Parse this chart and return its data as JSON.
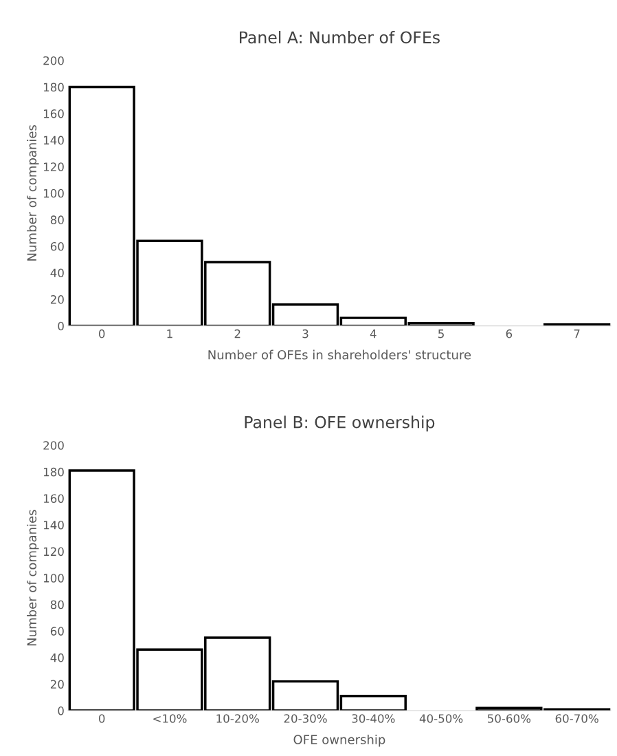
{
  "chart_data": [
    {
      "type": "bar",
      "title": "Panel A: Number of OFEs",
      "xlabel": "Number of OFEs in shareholders' structure",
      "ylabel": "Number of companies",
      "categories": [
        "0",
        "1",
        "2",
        "3",
        "4",
        "5",
        "6",
        "7"
      ],
      "values": [
        180,
        64,
        48,
        16,
        6,
        2,
        0,
        1
      ],
      "color": "#ffffff",
      "ylim": [
        0,
        200
      ],
      "yticks": [
        0,
        20,
        40,
        60,
        80,
        100,
        120,
        140,
        160,
        180,
        200
      ],
      "grid": false
    },
    {
      "type": "bar",
      "title": "Panel B: OFE ownership",
      "xlabel": "OFE ownership",
      "ylabel": "Number of companies",
      "categories": [
        "0",
        "<10%",
        "10-20%",
        "20-30%",
        "30-40%",
        "40-50%",
        "50-60%",
        "60-70%"
      ],
      "values": [
        181,
        46,
        55,
        22,
        11,
        0,
        2,
        1
      ],
      "color": "#ffffff",
      "ylim": [
        0,
        200
      ],
      "yticks": [
        0,
        20,
        40,
        60,
        80,
        100,
        120,
        140,
        160,
        180,
        200
      ],
      "grid": false
    }
  ]
}
